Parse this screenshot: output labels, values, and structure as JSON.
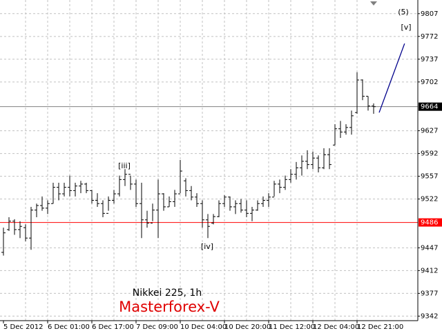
{
  "chart_data": {
    "type": "ohlc",
    "categories": [
      "5 Dec 2012",
      null,
      null,
      null,
      null,
      null,
      null,
      null,
      "6 Dec 01:00",
      null,
      null,
      null,
      null,
      null,
      null,
      null,
      "6 Dec 17:00",
      null,
      null,
      null,
      null,
      null,
      null,
      null,
      "7 Dec 09:00",
      null,
      null,
      null,
      null,
      null,
      null,
      null,
      "10 Dec 04:00",
      null,
      null,
      null,
      null,
      null,
      null,
      null,
      "10 Dec 20:00",
      null,
      null,
      null,
      null,
      null,
      null,
      null,
      "11 Dec 12:00",
      null,
      null,
      null,
      null,
      null,
      null,
      null,
      "12 Dec 04:00",
      null,
      null,
      null,
      null,
      null,
      null,
      null,
      "12 Dec 21:00",
      null,
      null,
      null
    ],
    "open": [
      9440,
      9475,
      9488,
      9475,
      9478,
      9462,
      9505,
      9512,
      9508,
      9515,
      9540,
      9530,
      9540,
      9535,
      9542,
      9545,
      9535,
      9520,
      9515,
      9500,
      9520,
      9530,
      9552,
      9560,
      9545,
      9515,
      9490,
      9485,
      9505,
      9530,
      9510,
      9518,
      9530,
      9550,
      9535,
      9525,
      9515,
      9490,
      9485,
      9495,
      9515,
      9525,
      9510,
      9515,
      9505,
      9500,
      9505,
      9515,
      9520,
      9525,
      9545,
      9540,
      9552,
      9560,
      9570,
      9580,
      9575,
      9585,
      9570,
      9590,
      9605,
      9630,
      9625,
      9632,
      9655,
      9705,
      9680,
      9665
    ],
    "high": [
      9478,
      9494,
      9491,
      9488,
      9483,
      9510,
      9515,
      9526,
      9520,
      9547,
      9547,
      9547,
      9558,
      9547,
      9550,
      9547,
      9536,
      9531,
      9520,
      9526,
      9536,
      9558,
      9568,
      9558,
      9552,
      9547,
      9504,
      9515,
      9552,
      9531,
      9526,
      9536,
      9582,
      9554,
      9542,
      9531,
      9520,
      9499,
      9499,
      9520,
      9528,
      9526,
      9520,
      9522,
      9520,
      9510,
      9520,
      9526,
      9531,
      9550,
      9552,
      9558,
      9568,
      9579,
      9589,
      9597,
      9595,
      9589,
      9600,
      9600,
      9637,
      9642,
      9637,
      9658,
      9717,
      9706,
      9680,
      9669
    ],
    "low": [
      9435,
      9473,
      9467,
      9462,
      9457,
      9444,
      9494,
      9504,
      9499,
      9515,
      9520,
      9526,
      9526,
      9526,
      9531,
      9531,
      9515,
      9510,
      9494,
      9504,
      9515,
      9526,
      9542,
      9536,
      9510,
      9462,
      9478,
      9488,
      9462,
      9504,
      9510,
      9510,
      9531,
      9526,
      9520,
      9510,
      9478,
      9462,
      9483,
      9494,
      9510,
      9504,
      9499,
      9501,
      9494,
      9488,
      9504,
      9510,
      9510,
      9526,
      9531,
      9536,
      9547,
      9552,
      9558,
      9568,
      9568,
      9563,
      9568,
      9568,
      9605,
      9616,
      9621,
      9621,
      9653,
      9674,
      9658,
      9653
    ],
    "close": [
      9470,
      9488,
      9475,
      9480,
      9462,
      9505,
      9512,
      9508,
      9515,
      9540,
      9530,
      9540,
      9535,
      9542,
      9545,
      9535,
      9520,
      9515,
      9500,
      9520,
      9530,
      9552,
      9560,
      9545,
      9515,
      9490,
      9485,
      9505,
      9530,
      9510,
      9518,
      9530,
      9565,
      9535,
      9525,
      9515,
      9490,
      9480,
      9495,
      9515,
      9525,
      9510,
      9515,
      9505,
      9500,
      9505,
      9515,
      9520,
      9525,
      9545,
      9540,
      9552,
      9560,
      9570,
      9580,
      9575,
      9585,
      9570,
      9590,
      9575,
      9630,
      9625,
      9632,
      9650,
      9705,
      9680,
      9665,
      9664
    ],
    "color": "#000000",
    "ylim": [
      9335,
      9828
    ],
    "yticks": [
      9807,
      9772,
      9737,
      9702,
      9627,
      9592,
      9557,
      9522,
      9447,
      9412,
      9377,
      9342
    ],
    "grid": true,
    "price_lines": [
      {
        "value": 9664,
        "color": "#808080",
        "label_color": "#000000"
      },
      {
        "value": 9486,
        "color": "#ff0000",
        "label_color": "#ff0000"
      }
    ],
    "trendline": {
      "x": [
        68,
        72.6
      ],
      "y": [
        9655,
        9761
      ],
      "color": "#00008b"
    },
    "annotations": [
      "(5)",
      "[v]",
      "[iii]",
      "[iv]",
      "Nikkei 225, 1h",
      "Masterforex-V"
    ]
  }
}
